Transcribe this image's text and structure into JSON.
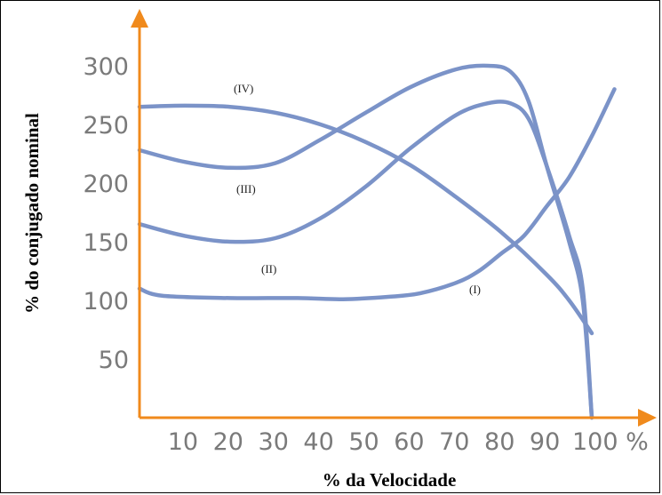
{
  "chart_data": {
    "type": "line",
    "xlabel": "% da Velocidade",
    "ylabel": "% do conjugado nominal",
    "x_ticks": [
      "10",
      "20",
      "30",
      "40",
      "50",
      "60",
      "70",
      "80",
      "90",
      "100 %"
    ],
    "y_ticks": [
      "300",
      "250",
      "200",
      "150",
      "100",
      "50"
    ],
    "xlim": [
      0,
      100
    ],
    "ylim": [
      0,
      300
    ],
    "grid": false,
    "axis_color": "#f08a1c",
    "line_color": "#7b93c8",
    "tick_color": "#7a7a7a",
    "series": [
      {
        "name": "(I)",
        "x": [
          0,
          5,
          20,
          35,
          45,
          55,
          62,
          70,
          75,
          80,
          85,
          90,
          95,
          100,
          105
        ],
        "y": [
          110,
          104,
          102,
          102,
          101,
          103,
          106,
          115,
          125,
          140,
          155,
          180,
          205,
          240,
          280
        ]
      },
      {
        "name": "(II)",
        "x": [
          0,
          10,
          20,
          30,
          40,
          50,
          60,
          70,
          77,
          82,
          86,
          90,
          95,
          98,
          100
        ],
        "y": [
          165,
          155,
          150,
          153,
          170,
          197,
          230,
          258,
          268,
          268,
          255,
          215,
          155,
          110,
          0
        ]
      },
      {
        "name": "(III)",
        "x": [
          0,
          10,
          20,
          30,
          40,
          50,
          60,
          70,
          77,
          82,
          86,
          90,
          95,
          98,
          100
        ],
        "y": [
          228,
          218,
          213,
          217,
          237,
          260,
          282,
          297,
          300,
          295,
          270,
          215,
          150,
          100,
          0
        ]
      },
      {
        "name": "(IV)",
        "x": [
          0,
          10,
          20,
          30,
          40,
          50,
          60,
          70,
          80,
          90,
          95,
          100
        ],
        "y": [
          265,
          266,
          265,
          260,
          250,
          235,
          215,
          188,
          158,
          122,
          100,
          72
        ]
      }
    ],
    "annotations": [
      "(IV)",
      "(III)",
      "(II)",
      "(I)"
    ]
  }
}
